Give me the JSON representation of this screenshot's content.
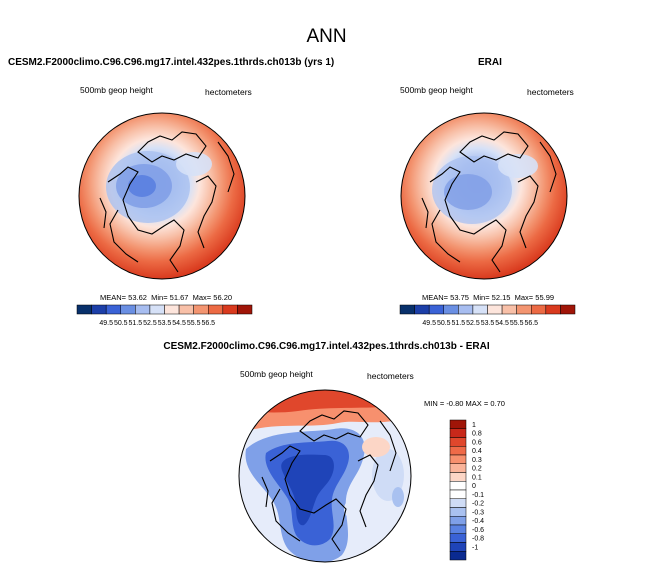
{
  "figure": {
    "title": "ANN"
  },
  "panels": [
    {
      "id": "model",
      "title": "CESM2.F2000climo.C96.C96.mg17.intel.432pes.1thrds.ch013b (yrs 1)",
      "variable_label": "500mb geop height",
      "units_label": "hectometers",
      "stats": {
        "mean_label": "MEAN=",
        "mean": "53.62",
        "min_label": "Min=",
        "min": "51.67",
        "max_label": "Max=",
        "max": "56.20"
      }
    },
    {
      "id": "obs",
      "title": "ERAI",
      "variable_label": "500mb geop height",
      "units_label": "hectometers",
      "stats": {
        "mean_label": "MEAN=",
        "mean": "53.75",
        "min_label": "Min=",
        "min": "52.15",
        "max_label": "Max=",
        "max": "55.99"
      }
    },
    {
      "id": "diff",
      "title": "CESM2.F2000climo.C96.C96.mg17.intel.432pes.1thrds.ch013b - ERAI",
      "variable_label": "500mb geop height",
      "units_label": "hectometers",
      "stats": {
        "min_label": "MIN =",
        "min": "-0.80",
        "max_label": "MAX =",
        "max": "0.70"
      }
    }
  ],
  "colorbars": {
    "absolute": {
      "labels": [
        "49.5",
        "50.5",
        "51.5",
        "52.5",
        "53.5",
        "54.5",
        "55.5",
        "56.5"
      ],
      "colors": [
        "#08306b",
        "#1c3fa8",
        "#3a62d6",
        "#6a8fe3",
        "#a7bdf0",
        "#d6e1f7",
        "#fde5dc",
        "#f8c0a8",
        "#f39571",
        "#ec6a44",
        "#d93a1e",
        "#a01508"
      ]
    },
    "difference": {
      "labels": [
        "1",
        "0.8",
        "0.6",
        "0.4",
        "0.3",
        "0.2",
        "0.1",
        "0",
        "-0.1",
        "-0.2",
        "-0.3",
        "-0.4",
        "-0.6",
        "-0.8",
        "-1"
      ],
      "colors": [
        "#a01508",
        "#c8281a",
        "#e0472c",
        "#ef6a48",
        "#f7906e",
        "#fab49a",
        "#fcd6c6",
        "#ffffff",
        "#ffffff",
        "#cfdcf6",
        "#a9c1f0",
        "#7fa0e8",
        "#5a82e2",
        "#3a62d6",
        "#1f44b8",
        "#0a2a90"
      ]
    }
  }
}
